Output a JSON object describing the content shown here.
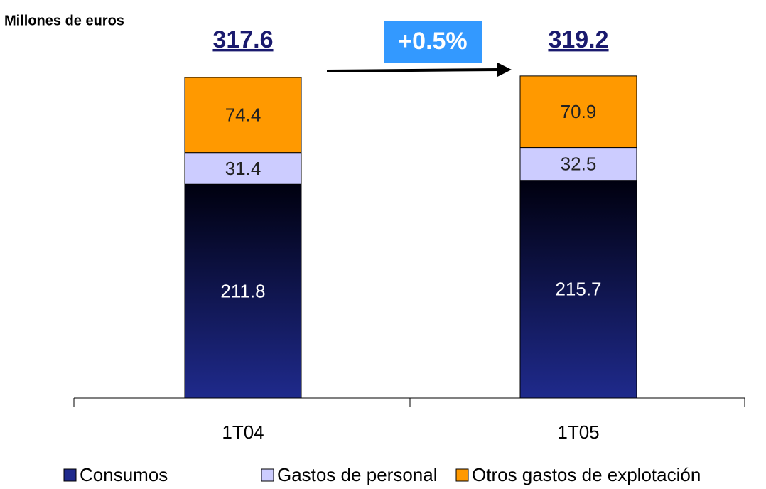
{
  "chart_data": {
    "type": "stacked_bar",
    "title": "Millones de euros",
    "categories": [
      "1T04",
      "1T05"
    ],
    "series": [
      {
        "name": "Consumos",
        "color": "#1f2a8c",
        "values": [
          211.8,
          215.7
        ]
      },
      {
        "name": "Gastos de personal",
        "color": "#ccccff",
        "values": [
          31.4,
          32.5
        ]
      },
      {
        "name": "Otros gastos de explotación",
        "color": "#ff9900",
        "values": [
          74.4,
          70.9
        ]
      }
    ],
    "totals": [
      317.6,
      319.2
    ],
    "annotation": "+0.5%"
  }
}
